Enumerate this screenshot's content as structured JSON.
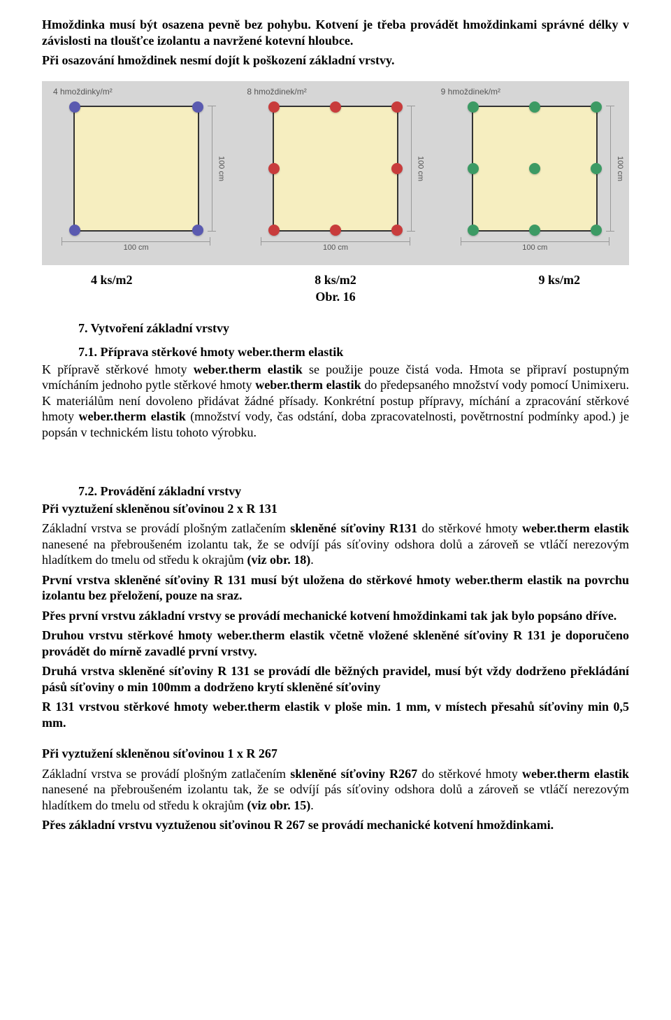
{
  "intro": {
    "p1": "Hmoždinka musí být osazena pevně bez pohybu. Kotvení je třeba provádět hmoždinkami správné délky v závislosti na tloušťce izolantu a navržené kotevní hloubce.",
    "p2": "Při osazování hmoždinek nesmí dojít k poškození základní vrstvy."
  },
  "diagram": {
    "bg": "#d6d6d6",
    "cell_bg": "#f6eec0",
    "border": "#333333",
    "dim_label": "100 cm",
    "panels": [
      {
        "title": "4 hmoždinky/m²",
        "dot_color": "#5a5ab0",
        "dots": [
          [
            0,
            0
          ],
          [
            100,
            0
          ],
          [
            0,
            100
          ],
          [
            100,
            100
          ]
        ]
      },
      {
        "title": "8 hmoždinek/m²",
        "dot_color": "#c83c3c",
        "dots": [
          [
            0,
            0
          ],
          [
            50,
            0
          ],
          [
            100,
            0
          ],
          [
            0,
            50
          ],
          [
            100,
            50
          ],
          [
            0,
            100
          ],
          [
            50,
            100
          ],
          [
            100,
            100
          ]
        ]
      },
      {
        "title": "9 hmoždinek/m²",
        "dot_color": "#3c9a64",
        "dots": [
          [
            0,
            0
          ],
          [
            50,
            0
          ],
          [
            100,
            0
          ],
          [
            0,
            50
          ],
          [
            50,
            50
          ],
          [
            100,
            50
          ],
          [
            0,
            100
          ],
          [
            50,
            100
          ],
          [
            100,
            100
          ]
        ]
      }
    ],
    "ks": {
      "a": "4 ks/m2",
      "b": "8 ks/m2",
      "c": "9 ks/m2"
    },
    "obr": "Obr. 16"
  },
  "sec7": {
    "title": "7. Vytvoření základní vrstvy",
    "s71_title": "7.1. Příprava stěrkové hmoty weber.therm elastik",
    "s71_body": "K přípravě stěrkové hmoty weber.therm elastik se použije pouze čistá voda. Hmota se připraví postupným vmícháním jednoho pytle stěrkové hmoty weber.therm elastik do předepsaného množství vody pomocí Unimixeru. K materiálům není dovoleno přidávat žádné přísady. Konkrétní postup přípravy, míchání a zpracování stěrkové hmoty weber.therm elastik (množství vody, čas odstání, doba zpracovatelnosti, povětrnostní podmínky apod.) je popsán v technickém listu tohoto výrobku.",
    "s72_title": "7.2. Provádění základní vrstvy",
    "r131_head": "Při vyztužení skleněnou síťovinou 2 x R 131",
    "r131_p1a": "Základní vrstva se provádí plošným zatlačením ",
    "r131_p1b": "skleněné síťoviny R131",
    "r131_p1c": " do stěrkové hmoty ",
    "r131_p1d": "weber.therm elastik",
    "r131_p1e": " nanesené na přebroušeném izolantu tak, že se odvíjí pás síťoviny odshora dolů a zároveň se vtláčí nerezovým hladítkem do tmelu od středu k okrajům ",
    "r131_p1f": "(viz obr. 18)",
    "r131_p1g": ".",
    "r131_b1": "První vrstva skleněné síťoviny R 131 musí být uložena do stěrkové hmoty weber.therm elastik na povrchu izolantu bez přeložení, pouze na sraz.",
    "r131_b2": "Přes první vrstvu základní vrstvy se provádí  mechanické kotvení hmoždinkami tak jak bylo popsáno dříve.",
    "r131_b3": "Druhou vrstvu stěrkové hmoty weber.therm elastik včetně vložené skleněné síťoviny R 131 je doporučeno provádět  do mírně zavadlé  první vrstvy.",
    "r131_b4": "Druhá vrstva skleněné síťoviny R 131 se provádí dle běžných pravidel, musí být vždy dodrženo překládání pásů síťoviny o min 100mm a dodrženo krytí skleněné síťoviny",
    "r131_b5": "R 131 vrstvou stěrkové hmoty weber.therm elastik v ploše min. 1 mm, v místech přesahů síťoviny min 0,5 mm.",
    "r267_head": "Při vyztužení skleněnou síťovinou 1 x R 267",
    "r267_p1a": "Základní vrstva se provádí plošným zatlačením ",
    "r267_p1b": "skleněné síťoviny R267",
    "r267_p1c": " do stěrkové hmoty ",
    "r267_p1d": "weber.therm elastik",
    "r267_p1e": " nanesené na přebroušeném izolantu tak, že se odvíjí pás síťoviny odshora dolů a zároveň se vtláčí nerezovým hladítkem do tmelu od středu k okrajům ",
    "r267_p1f": "(viz obr. 15)",
    "r267_p1g": ".",
    "r267_b1": "Přes  základní vrstvu vyztuženou siťovinou R 267 se provádí  mechanické kotvení hmoždinkami."
  }
}
